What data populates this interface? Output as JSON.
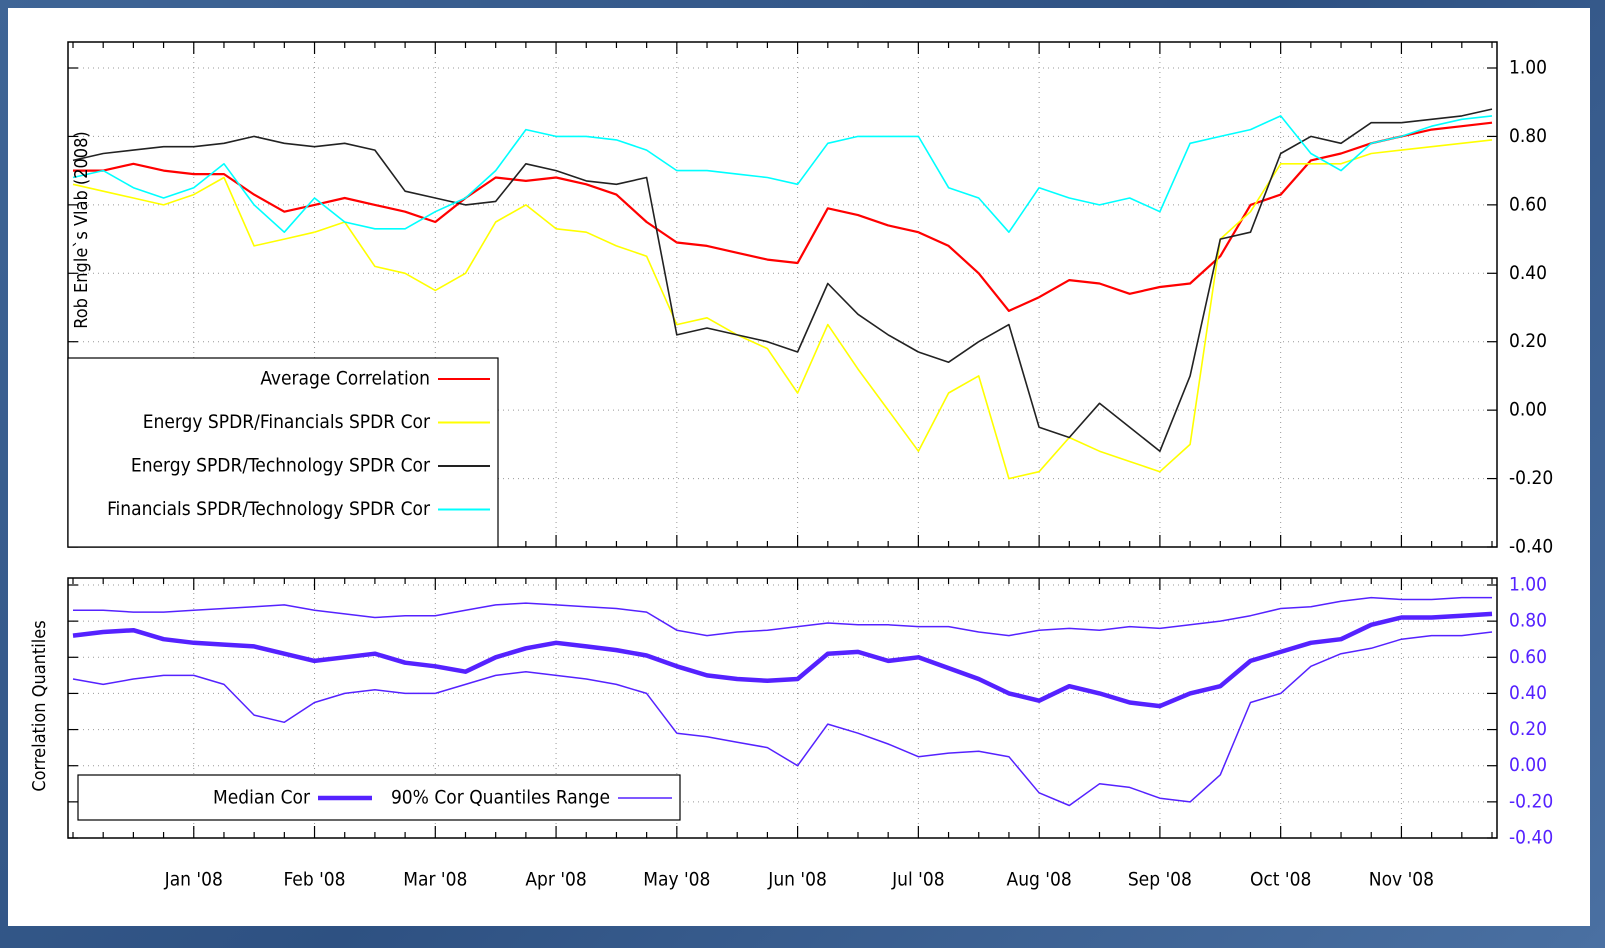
{
  "chart_data": [
    {
      "type": "line",
      "ylabel": "Rob Engle`s Vlab (2008)",
      "ylim": [
        -0.4,
        1.0
      ],
      "yticks": [
        {
          "value": 1.0,
          "label": "1.00"
        },
        {
          "value": 0.8,
          "label": "0.80"
        },
        {
          "value": 0.6,
          "label": "0.60"
        },
        {
          "value": 0.4,
          "label": "0.40"
        },
        {
          "value": 0.2,
          "label": "0.20"
        },
        {
          "value": 0.0,
          "label": "0.00"
        },
        {
          "value": -0.2,
          "label": "-0.20"
        },
        {
          "value": -0.4,
          "label": "-0.40"
        }
      ],
      "tick_color": "#000000",
      "grid": true,
      "legend": "lower left",
      "series": [
        {
          "name": "Average Correlation",
          "color": "#ff0000",
          "linewidth": 2.2,
          "values": [
            0.7,
            0.7,
            0.72,
            0.7,
            0.69,
            0.69,
            0.63,
            0.58,
            0.6,
            0.62,
            0.6,
            0.58,
            0.55,
            0.62,
            0.68,
            0.67,
            0.68,
            0.66,
            0.63,
            0.55,
            0.49,
            0.48,
            0.46,
            0.44,
            0.43,
            0.59,
            0.57,
            0.54,
            0.52,
            0.48,
            0.4,
            0.29,
            0.33,
            0.38,
            0.37,
            0.34,
            0.36,
            0.37,
            0.45,
            0.6,
            0.63,
            0.73,
            0.75,
            0.78,
            0.8,
            0.82,
            0.83,
            0.84
          ]
        },
        {
          "name": "Energy SPDR/Financials SPDR Cor",
          "color": "#ffff00",
          "linewidth": 1.6,
          "values": [
            0.66,
            0.64,
            0.62,
            0.6,
            0.63,
            0.68,
            0.48,
            0.5,
            0.52,
            0.55,
            0.42,
            0.4,
            0.35,
            0.4,
            0.55,
            0.6,
            0.53,
            0.52,
            0.48,
            0.45,
            0.25,
            0.27,
            0.22,
            0.18,
            0.05,
            0.25,
            0.12,
            0.0,
            -0.12,
            0.05,
            0.1,
            -0.2,
            -0.18,
            -0.08,
            -0.12,
            -0.15,
            -0.18,
            -0.1,
            0.5,
            0.58,
            0.72,
            0.72,
            0.72,
            0.75,
            0.76,
            0.77,
            0.78,
            0.79
          ]
        },
        {
          "name": "Energy SPDR/Technology SPDR Cor",
          "color": "#222222",
          "linewidth": 1.6,
          "values": [
            0.73,
            0.75,
            0.76,
            0.77,
            0.77,
            0.78,
            0.8,
            0.78,
            0.77,
            0.78,
            0.76,
            0.64,
            0.62,
            0.6,
            0.61,
            0.72,
            0.7,
            0.67,
            0.66,
            0.68,
            0.22,
            0.24,
            0.22,
            0.2,
            0.17,
            0.37,
            0.28,
            0.22,
            0.17,
            0.14,
            0.2,
            0.25,
            -0.05,
            -0.08,
            0.02,
            -0.05,
            -0.12,
            0.1,
            0.5,
            0.52,
            0.75,
            0.8,
            0.78,
            0.84,
            0.84,
            0.85,
            0.86,
            0.88
          ]
        },
        {
          "name": "Financials SPDR/Technology SPDR Cor",
          "color": "#00ffff",
          "linewidth": 1.6,
          "values": [
            0.68,
            0.7,
            0.65,
            0.62,
            0.65,
            0.72,
            0.6,
            0.52,
            0.62,
            0.55,
            0.53,
            0.53,
            0.58,
            0.62,
            0.7,
            0.82,
            0.8,
            0.8,
            0.79,
            0.76,
            0.7,
            0.7,
            0.69,
            0.68,
            0.66,
            0.78,
            0.8,
            0.8,
            0.8,
            0.65,
            0.62,
            0.52,
            0.65,
            0.62,
            0.6,
            0.62,
            0.58,
            0.78,
            0.8,
            0.82,
            0.86,
            0.75,
            0.7,
            0.78,
            0.8,
            0.83,
            0.85,
            0.86
          ]
        }
      ]
    },
    {
      "type": "band",
      "ylabel": "Correlation Quantiles",
      "ylim": [
        -0.4,
        1.0
      ],
      "yticks": [
        {
          "value": 1.0,
          "label": "1.00"
        },
        {
          "value": 0.8,
          "label": "0.80"
        },
        {
          "value": 0.6,
          "label": "0.60"
        },
        {
          "value": 0.4,
          "label": "0.40"
        },
        {
          "value": 0.2,
          "label": "0.20"
        },
        {
          "value": 0.0,
          "label": "0.00"
        },
        {
          "value": -0.2,
          "label": "-0.20"
        },
        {
          "value": -0.4,
          "label": "-0.40"
        }
      ],
      "tick_color": "#5522ff",
      "grid": true,
      "legend": "lower left",
      "categories": [
        null,
        null,
        null,
        null,
        "Jan '08",
        null,
        null,
        null,
        "Feb '08",
        null,
        null,
        null,
        "Mar '08",
        null,
        null,
        null,
        "Apr '08",
        null,
        null,
        null,
        "May '08",
        null,
        null,
        null,
        "Jun '08",
        null,
        null,
        null,
        "Jul '08",
        null,
        null,
        null,
        "Aug '08",
        null,
        null,
        null,
        "Sep '08",
        null,
        null,
        null,
        "Oct '08",
        null,
        null,
        null,
        "Nov '08",
        null,
        null,
        null
      ],
      "series": [
        {
          "name": "Median Cor",
          "color": "#5522ff",
          "linewidth": 4.5,
          "values": [
            0.72,
            0.74,
            0.75,
            0.7,
            0.68,
            0.67,
            0.66,
            0.62,
            0.58,
            0.6,
            0.62,
            0.57,
            0.55,
            0.52,
            0.6,
            0.65,
            0.68,
            0.66,
            0.64,
            0.61,
            0.55,
            0.5,
            0.48,
            0.47,
            0.48,
            0.62,
            0.63,
            0.58,
            0.6,
            0.54,
            0.48,
            0.4,
            0.36,
            0.44,
            0.4,
            0.35,
            0.33,
            0.4,
            0.44,
            0.58,
            0.63,
            0.68,
            0.7,
            0.78,
            0.82,
            0.82,
            0.83,
            0.84
          ]
        },
        {
          "name": "90% Cor Quantiles Range",
          "color": "#5522ff",
          "linewidth": 1.5,
          "upper": [
            0.86,
            0.86,
            0.85,
            0.85,
            0.86,
            0.87,
            0.88,
            0.89,
            0.86,
            0.84,
            0.82,
            0.83,
            0.83,
            0.86,
            0.89,
            0.9,
            0.89,
            0.88,
            0.87,
            0.85,
            0.75,
            0.72,
            0.74,
            0.75,
            0.77,
            0.79,
            0.78,
            0.78,
            0.77,
            0.77,
            0.74,
            0.72,
            0.75,
            0.76,
            0.75,
            0.77,
            0.76,
            0.78,
            0.8,
            0.83,
            0.87,
            0.88,
            0.91,
            0.93,
            0.92,
            0.92,
            0.93,
            0.93
          ],
          "lower": [
            0.48,
            0.45,
            0.48,
            0.5,
            0.5,
            0.45,
            0.28,
            0.24,
            0.35,
            0.4,
            0.42,
            0.4,
            0.4,
            0.45,
            0.5,
            0.52,
            0.5,
            0.48,
            0.45,
            0.4,
            0.18,
            0.16,
            0.13,
            0.1,
            0.0,
            0.23,
            0.18,
            0.12,
            0.05,
            0.07,
            0.08,
            0.05,
            -0.15,
            -0.22,
            -0.1,
            -0.12,
            -0.18,
            -0.2,
            -0.05,
            0.35,
            0.4,
            0.55,
            0.62,
            0.65,
            0.7,
            0.72,
            0.72,
            0.74
          ]
        }
      ]
    }
  ]
}
